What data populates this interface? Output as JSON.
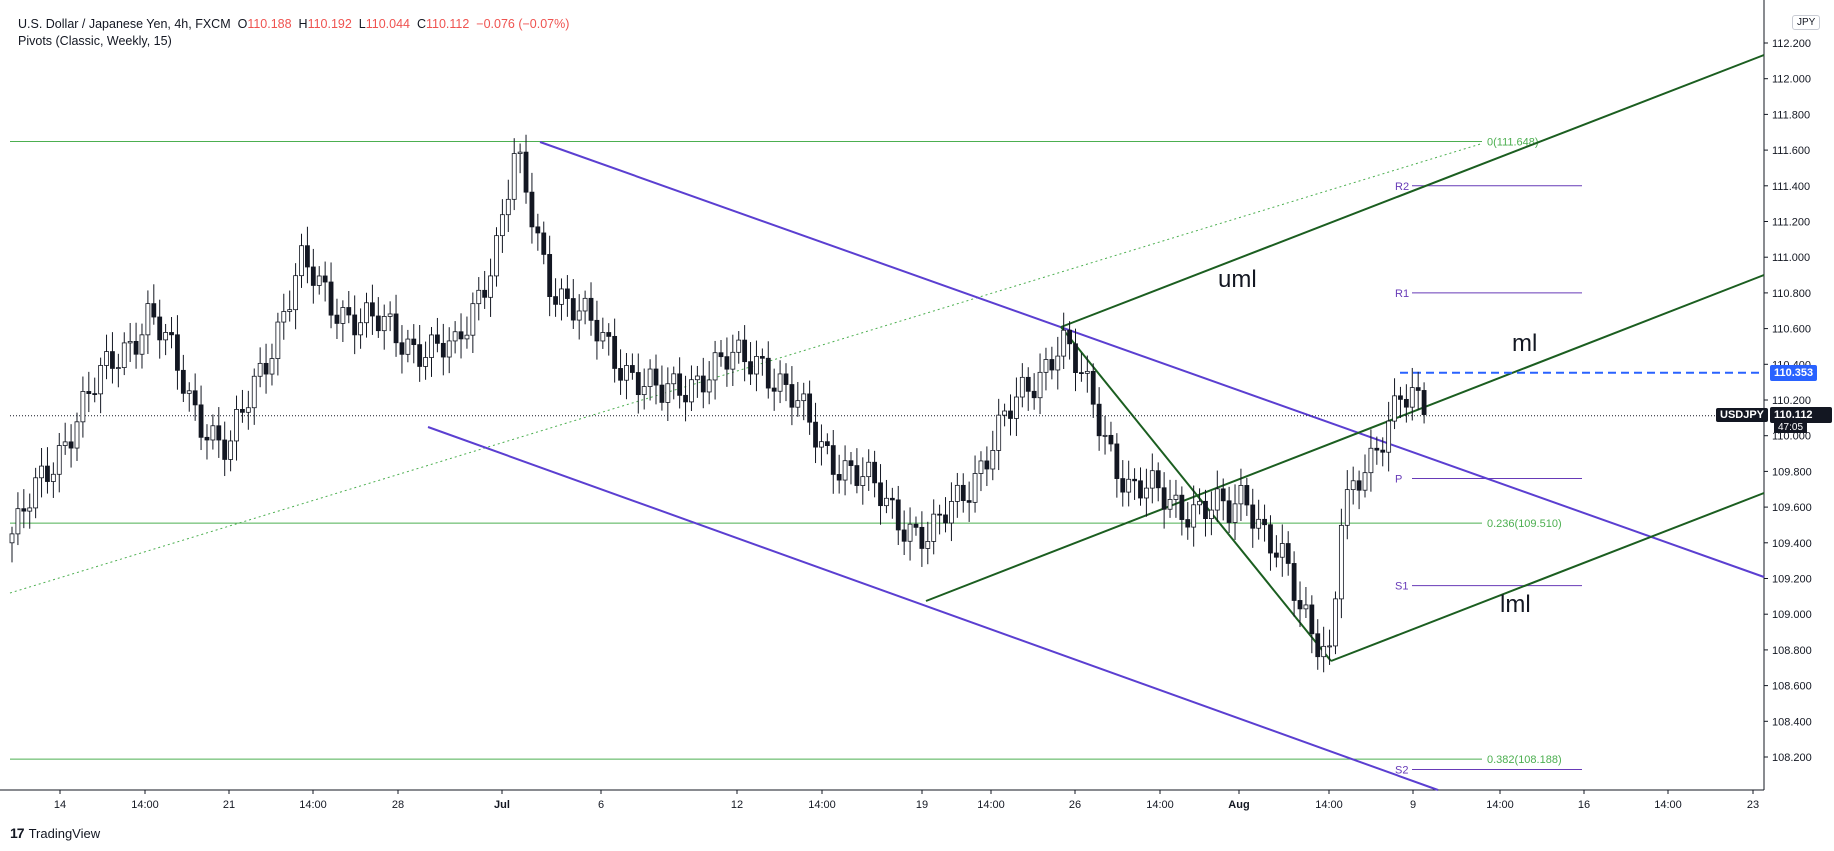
{
  "header": {
    "symbol_desc": "U.S. Dollar / Japanese Yen, 4h, FXCM",
    "o_label": "O",
    "o": "110.188",
    "h_label": "H",
    "h": "110.192",
    "l_label": "L",
    "l": "110.044",
    "c_label": "C",
    "c": "110.112",
    "change": "−0.076 (−0.07%)",
    "indicator": "Pivots (Classic, Weekly, 15)"
  },
  "currency_badge": "JPY",
  "symbol_tag": "USDJPY",
  "last_price_tag": "110.112",
  "countdown": "47:05",
  "level_tag": "110.353",
  "brand": "TradingView",
  "colors": {
    "fib": "#4caf50",
    "pivot": "#673ab7",
    "channel": "#5b3fd1",
    "pitchfork": "#1b5e20",
    "level": "#2962ff",
    "candle_up": "#ffffff",
    "candle_down": "#131722"
  },
  "chart_data": {
    "type": "candlestick",
    "symbol": "USDJPY",
    "timeframe": "4h",
    "y_axis_ticks": [
      "112.200",
      "112.000",
      "111.800",
      "111.600",
      "111.400",
      "111.200",
      "111.000",
      "110.800",
      "110.600",
      "110.400",
      "110.200",
      "110.000",
      "109.800",
      "109.600",
      "109.400",
      "109.200",
      "109.000",
      "108.800",
      "108.600",
      "108.400",
      "108.200"
    ],
    "ylim": [
      108.0,
      112.3
    ],
    "x_axis_ticks": [
      "14",
      "14:00",
      "21",
      "14:00",
      "28",
      "Jul",
      "6",
      "12",
      "14:00",
      "19",
      "14:00",
      "26",
      "14:00",
      "Aug",
      "14:00",
      "9",
      "14:00",
      "16",
      "14:00",
      "23"
    ],
    "x_axis_bold": [
      "Jul",
      "Aug"
    ],
    "fib_levels": [
      {
        "label": "0(111.648)",
        "value": 111.648
      },
      {
        "label": "0.236(109.510)",
        "value": 109.51
      },
      {
        "label": "0.382(108.188)",
        "value": 108.188
      }
    ],
    "pivots": [
      {
        "label": "R2",
        "value": 111.4
      },
      {
        "label": "R1",
        "value": 110.8
      },
      {
        "label": "P",
        "value": 109.76
      },
      {
        "label": "S1",
        "value": 109.16
      },
      {
        "label": "S2",
        "value": 108.13
      }
    ],
    "annotations": [
      "uml",
      "ml",
      "lml"
    ],
    "key_level": 110.353,
    "last_price": 110.112,
    "closes_points": [
      {
        "x": "Jun 14",
        "y": 109.45
      },
      {
        "x": "Jun 16",
        "y": 110.1
      },
      {
        "x": "Jun 17",
        "y": 110.7
      },
      {
        "x": "Jun 18",
        "y": 110.2
      },
      {
        "x": "Jun 21",
        "y": 109.9
      },
      {
        "x": "Jun 23",
        "y": 110.95
      },
      {
        "x": "Jun 25",
        "y": 110.75
      },
      {
        "x": "Jun 28",
        "y": 110.55
      },
      {
        "x": "Jun 30",
        "y": 110.45
      },
      {
        "x": "Jul 1",
        "y": 111.1
      },
      {
        "x": "Jul 2",
        "y": 111.55
      },
      {
        "x": "Jul 5",
        "y": 110.9
      },
      {
        "x": "Jul 7",
        "y": 110.6
      },
      {
        "x": "Jul 9",
        "y": 110.2
      },
      {
        "x": "Jul 12",
        "y": 110.35
      },
      {
        "x": "Jul 14",
        "y": 110.45
      },
      {
        "x": "Jul 16",
        "y": 109.95
      },
      {
        "x": "Jul 19",
        "y": 109.4
      },
      {
        "x": "Jul 21",
        "y": 109.8
      },
      {
        "x": "Jul 23",
        "y": 110.2
      },
      {
        "x": "Jul 26",
        "y": 110.55
      },
      {
        "x": "Jul 27",
        "y": 110.2
      },
      {
        "x": "Jul 29",
        "y": 109.7
      },
      {
        "x": "Aug 2",
        "y": 109.55
      },
      {
        "x": "Aug 3",
        "y": 109.7
      },
      {
        "x": "Aug 4",
        "y": 109.25
      },
      {
        "x": "Aug 5",
        "y": 109.0
      },
      {
        "x": "Aug 6",
        "y": 108.8
      },
      {
        "x": "Aug 6",
        "y": 109.55
      },
      {
        "x": "Aug 7",
        "y": 109.8
      },
      {
        "x": "Aug 9",
        "y": 110.3
      },
      {
        "x": "Aug 9",
        "y": 110.11
      }
    ]
  }
}
